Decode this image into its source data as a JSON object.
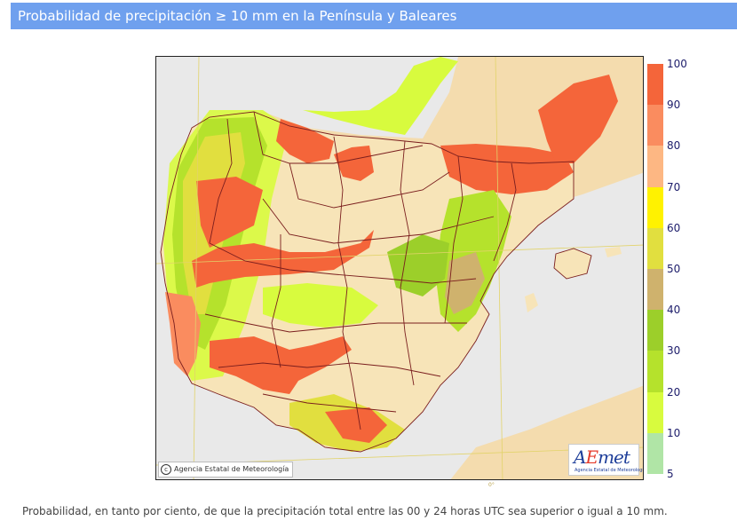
{
  "header": {
    "title": "Probabilidad de precipitación ≥ 10 mm en la Península y Baleares"
  },
  "map": {
    "copyright": "Agencia Estatal de Meteorología",
    "logo_text": "AEmet",
    "logo_subtitle": "Agencia Estatal de Meteorología",
    "meridian_label": "0°"
  },
  "legend": {
    "labels": [
      "100",
      "90",
      "80",
      "70",
      "60",
      "50",
      "40",
      "30",
      "20",
      "10",
      "5"
    ],
    "classes": [
      {
        "range": "90-100",
        "color": "#f4653a"
      },
      {
        "range": "80-90",
        "color": "#fa8c5f"
      },
      {
        "range": "70-80",
        "color": "#fdb783"
      },
      {
        "range": "60-70",
        "color": "#fff200"
      },
      {
        "range": "50-60",
        "color": "#e1df3f"
      },
      {
        "range": "40-50",
        "color": "#cfb26d"
      },
      {
        "range": "30-40",
        "color": "#9ccf2a"
      },
      {
        "range": "20-30",
        "color": "#b5e22c"
      },
      {
        "range": "10-20",
        "color": "#d8fb3e"
      },
      {
        "range": "5-10",
        "color": "#b0e5a6"
      }
    ]
  },
  "footer": {
    "caption": "Probabilidad, en tanto por ciento, de que la precipitación total entre las 00 y 24 horas UTC sea superior o igual a 10 mm."
  }
}
